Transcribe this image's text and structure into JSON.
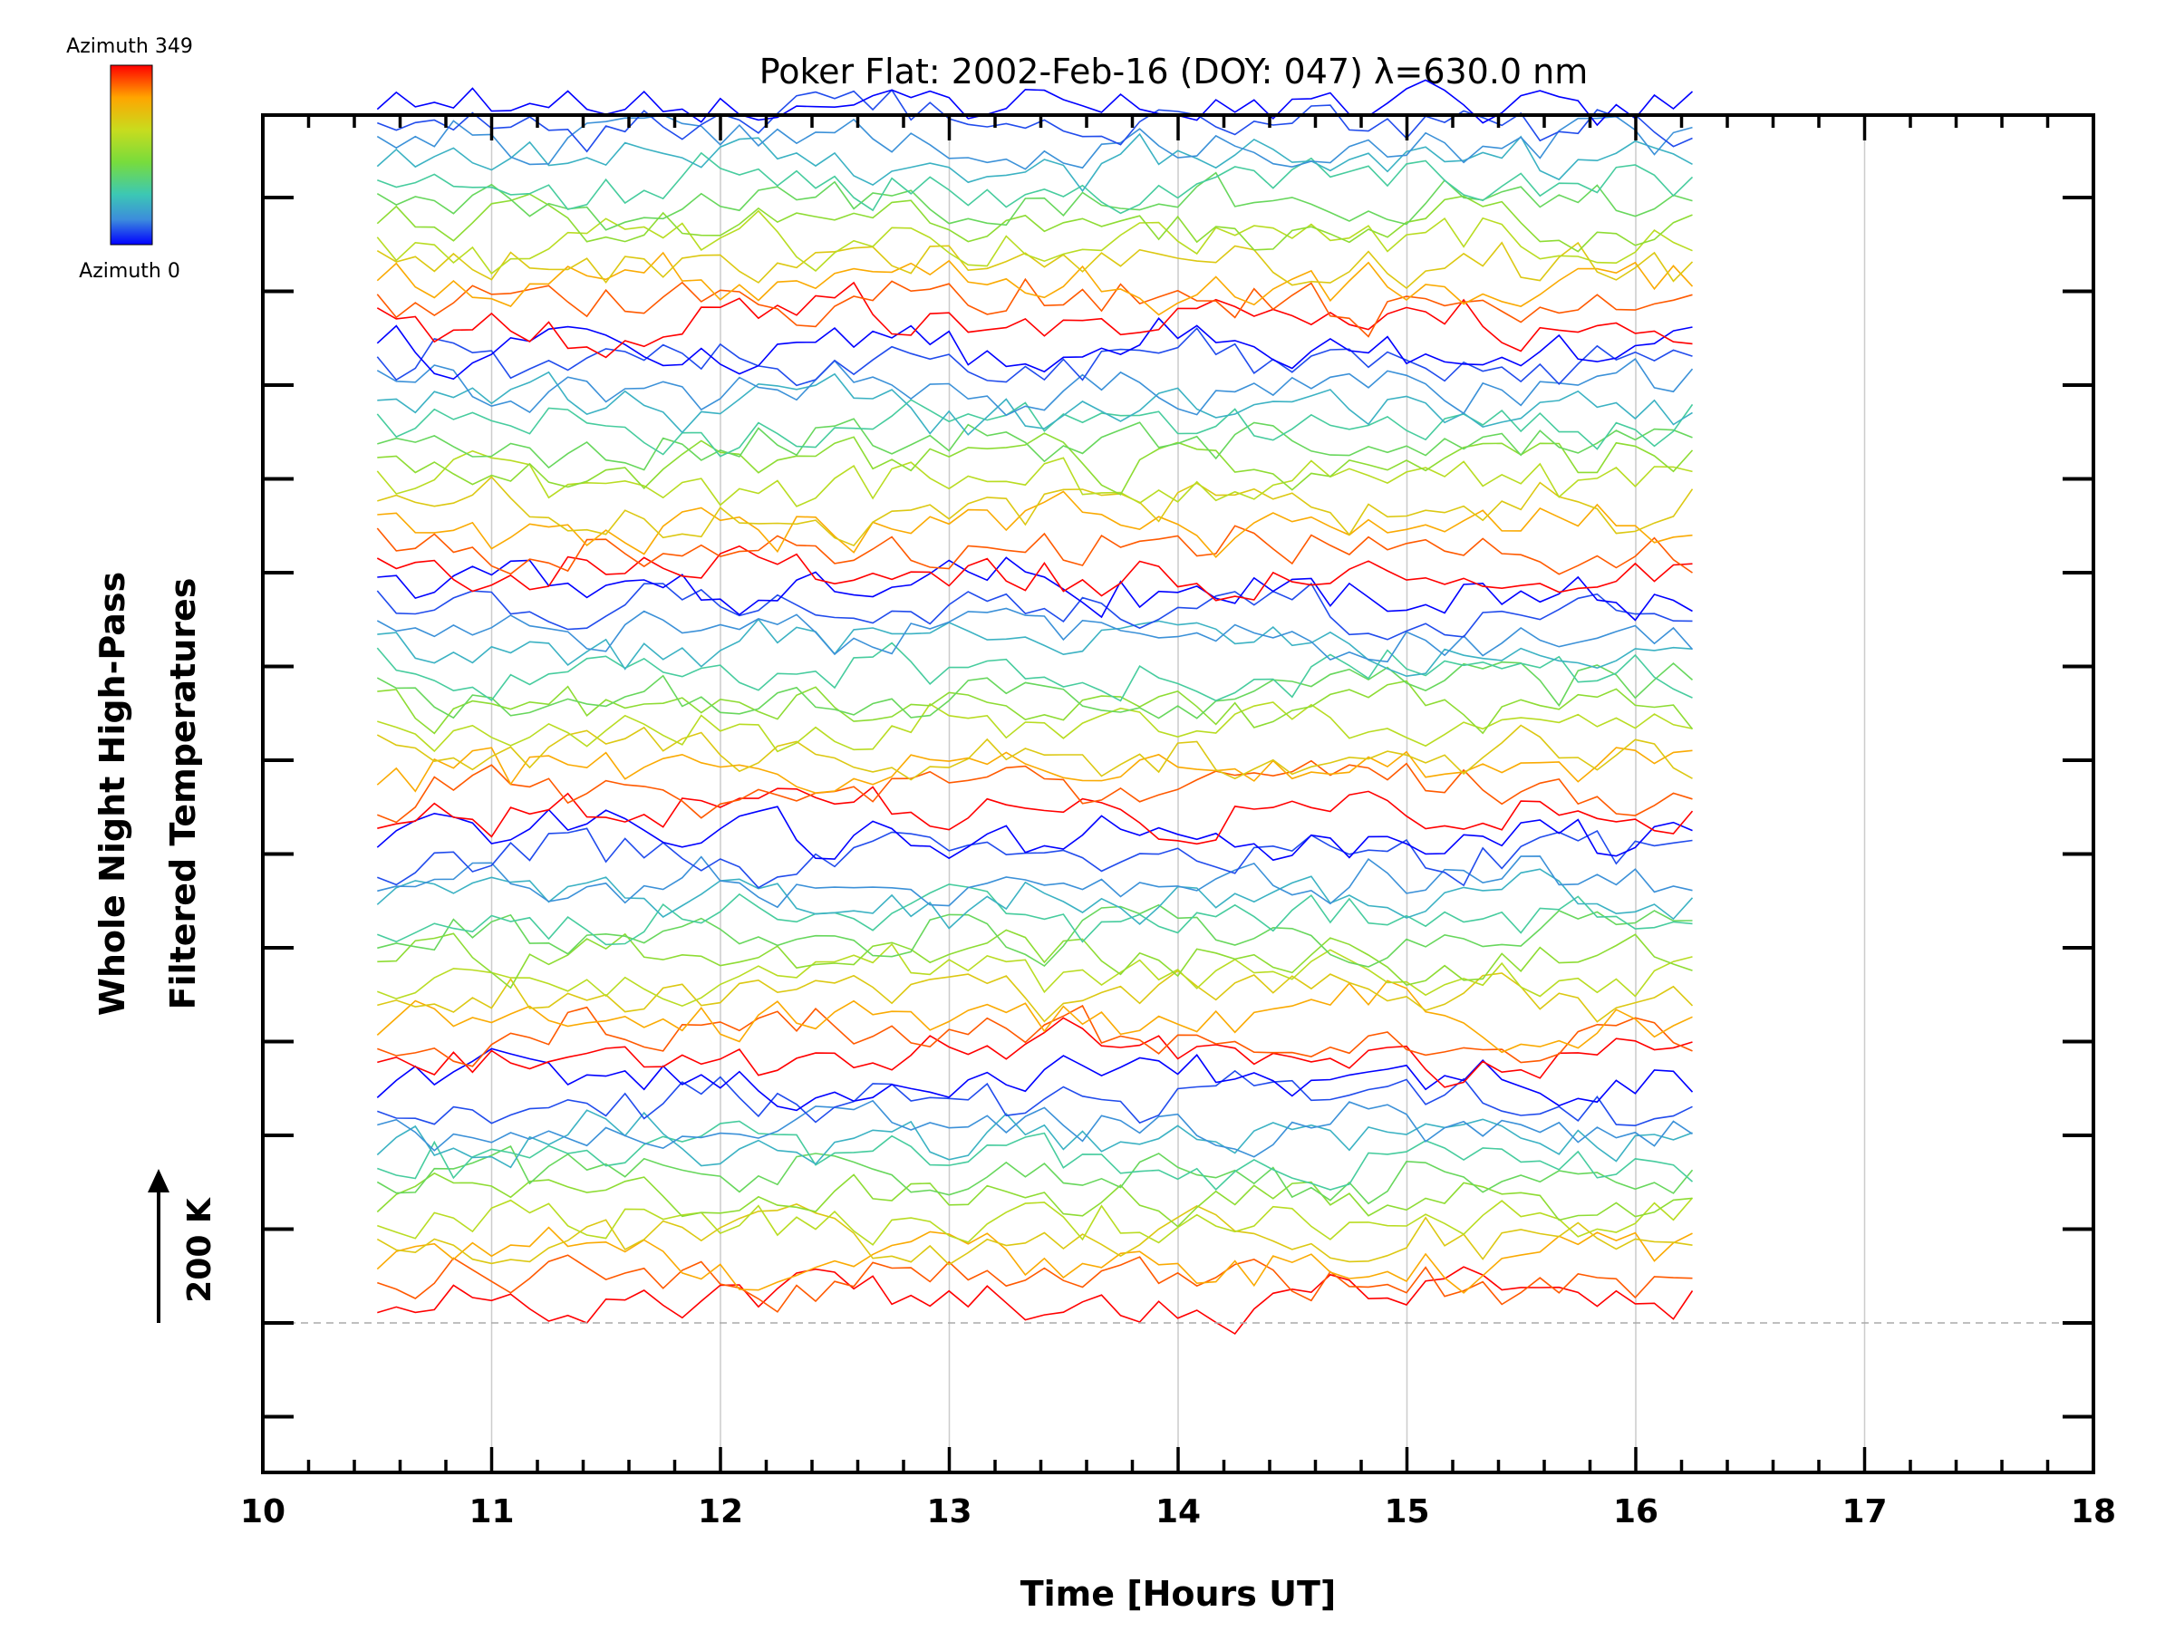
{
  "chart_data": {
    "type": "line",
    "title": "Poker Flat: 2002-Feb-16 (DOY: 047) λ=630.0 nm",
    "xlabel": "Time [Hours UT]",
    "ylabel_line1": "Whole Night High-Pass",
    "ylabel_line2": "Filtered Temperatures",
    "xlim": [
      10,
      18
    ],
    "x_ticks": [
      "10",
      "11",
      "12",
      "13",
      "14",
      "15",
      "16",
      "17",
      "18"
    ],
    "grid": "vertical",
    "scale_bar_label": "200 K",
    "colorbar": {
      "top_label": "Azimuth 349",
      "bottom_label": "Azimuth 0",
      "stops": [
        "#ff0000",
        "#ffa500",
        "#c8dc1e",
        "#78dc3c",
        "#3cc8b4",
        "#3c8cdc",
        "#0000ff"
      ]
    },
    "y_offsets_k": [
      0,
      200,
      400,
      600,
      800
    ],
    "series_count": 60,
    "time_start": 10.5,
    "time_end": 16.25,
    "time_step": 0.0833,
    "series": [
      {
        "color": "#0000ff",
        "baseline_k": 0
      },
      {
        "color": "#ff0000",
        "baseline_k": 200
      },
      {
        "color": "#0000ff",
        "baseline_k": 400
      },
      {
        "color": "#0000ff",
        "baseline_k": 600
      },
      {
        "color": "#ff0000",
        "baseline_k": 800
      }
    ]
  }
}
